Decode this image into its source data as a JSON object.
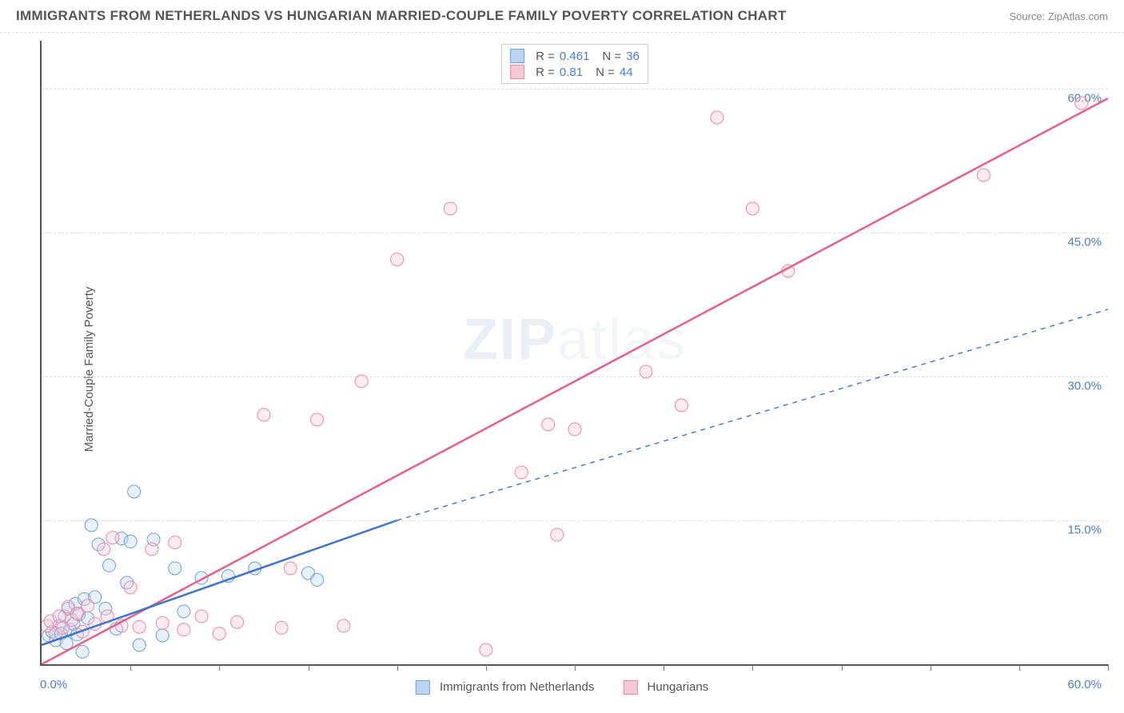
{
  "header": {
    "title": "IMMIGRANTS FROM NETHERLANDS VS HUNGARIAN MARRIED-COUPLE FAMILY POVERTY CORRELATION CHART",
    "source": "Source: ZipAtlas.com"
  },
  "chart": {
    "type": "scatter",
    "ylabel": "Married-Couple Family Poverty",
    "xlim": [
      0,
      60
    ],
    "ylim": [
      0,
      65
    ],
    "xtick_positions": [
      0,
      5,
      10,
      15,
      20,
      25,
      30,
      35,
      40,
      45,
      50,
      55,
      60
    ],
    "ygrid": [
      {
        "value": 15,
        "label": "15.0%"
      },
      {
        "value": 30,
        "label": "30.0%"
      },
      {
        "value": 45,
        "label": "45.0%"
      },
      {
        "value": 60,
        "label": "60.0%"
      }
    ],
    "xmin_label": "0.0%",
    "xmax_label": "60.0%",
    "background_color": "#ffffff",
    "grid_color": "#dddddd",
    "axis_color": "#555555",
    "tick_color": "#4a7dd6",
    "watermark": "ZIPatlas",
    "marker_radius": 8,
    "marker_opacity": 0.35,
    "line_width_solid": 2.5,
    "line_width_dash": 1.4,
    "series": [
      {
        "name": "Immigrants from Netherlands",
        "color_fill": "#bcd4f0",
        "color_stroke": "#6aa0e0",
        "line_color": "#3b74d1",
        "R": 0.461,
        "N": 36,
        "trend": {
          "x1": 0,
          "y1": 2.0,
          "x2_solid": 20,
          "y2_solid": 15.0,
          "x2_dash": 60,
          "y2_dash": 37.0
        },
        "points": [
          [
            0.4,
            3.0
          ],
          [
            0.6,
            3.4
          ],
          [
            0.8,
            2.5
          ],
          [
            1.0,
            4.0
          ],
          [
            1.1,
            3.2
          ],
          [
            1.3,
            5.0
          ],
          [
            1.4,
            2.2
          ],
          [
            1.5,
            5.8
          ],
          [
            1.6,
            3.6
          ],
          [
            1.8,
            4.2
          ],
          [
            1.9,
            6.3
          ],
          [
            2.0,
            3.1
          ],
          [
            2.1,
            5.2
          ],
          [
            2.3,
            1.3
          ],
          [
            2.4,
            6.8
          ],
          [
            2.6,
            4.8
          ],
          [
            2.8,
            14.5
          ],
          [
            3.0,
            7.0
          ],
          [
            3.2,
            12.5
          ],
          [
            3.6,
            5.8
          ],
          [
            3.8,
            10.3
          ],
          [
            4.2,
            3.7
          ],
          [
            4.5,
            13.1
          ],
          [
            4.8,
            8.5
          ],
          [
            5.0,
            12.8
          ],
          [
            5.2,
            18.0
          ],
          [
            5.5,
            2.0
          ],
          [
            6.3,
            13.0
          ],
          [
            6.8,
            3.0
          ],
          [
            7.5,
            10.0
          ],
          [
            8.0,
            5.5
          ],
          [
            9.0,
            9.0
          ],
          [
            10.5,
            9.2
          ],
          [
            12.0,
            10.0
          ],
          [
            15.0,
            9.5
          ],
          [
            15.5,
            8.8
          ]
        ]
      },
      {
        "name": "Hungarians",
        "color_fill": "#f7c9d5",
        "color_stroke": "#e98aa5",
        "line_color": "#e85f88",
        "R": 0.81,
        "N": 44,
        "trend": {
          "x1": 0,
          "y1": 0.0,
          "x2_solid": 60,
          "y2_solid": 59.0
        },
        "points": [
          [
            0.3,
            4.0
          ],
          [
            0.5,
            4.5
          ],
          [
            0.8,
            3.2
          ],
          [
            1.0,
            5.0
          ],
          [
            1.2,
            3.8
          ],
          [
            1.5,
            6.0
          ],
          [
            1.7,
            4.6
          ],
          [
            2.0,
            5.3
          ],
          [
            2.3,
            3.4
          ],
          [
            2.6,
            6.1
          ],
          [
            3.0,
            4.2
          ],
          [
            3.5,
            12.0
          ],
          [
            3.7,
            5.0
          ],
          [
            4.0,
            13.2
          ],
          [
            4.5,
            4.0
          ],
          [
            5.0,
            8.0
          ],
          [
            5.5,
            3.9
          ],
          [
            6.2,
            12.0
          ],
          [
            6.8,
            4.3
          ],
          [
            7.5,
            12.7
          ],
          [
            8.0,
            3.6
          ],
          [
            9.0,
            5.0
          ],
          [
            10.0,
            3.2
          ],
          [
            11.0,
            4.4
          ],
          [
            12.5,
            26.0
          ],
          [
            13.5,
            3.8
          ],
          [
            14.0,
            10.0
          ],
          [
            15.5,
            25.5
          ],
          [
            17.0,
            4.0
          ],
          [
            18.0,
            29.5
          ],
          [
            20.0,
            42.2
          ],
          [
            23.0,
            47.5
          ],
          [
            25.0,
            1.5
          ],
          [
            27.0,
            20.0
          ],
          [
            28.5,
            25.0
          ],
          [
            29.0,
            13.5
          ],
          [
            30.0,
            24.5
          ],
          [
            34.0,
            30.5
          ],
          [
            36.0,
            27.0
          ],
          [
            38.0,
            57.0
          ],
          [
            40.0,
            47.5
          ],
          [
            42.0,
            41.0
          ],
          [
            53.0,
            51.0
          ],
          [
            58.5,
            58.5
          ]
        ]
      }
    ],
    "legend_bottom": [
      {
        "label": "Immigrants from Netherlands",
        "fill": "#bcd4f0",
        "stroke": "#6aa0e0"
      },
      {
        "label": "Hungarians",
        "fill": "#f7c9d5",
        "stroke": "#e98aa5"
      }
    ]
  }
}
